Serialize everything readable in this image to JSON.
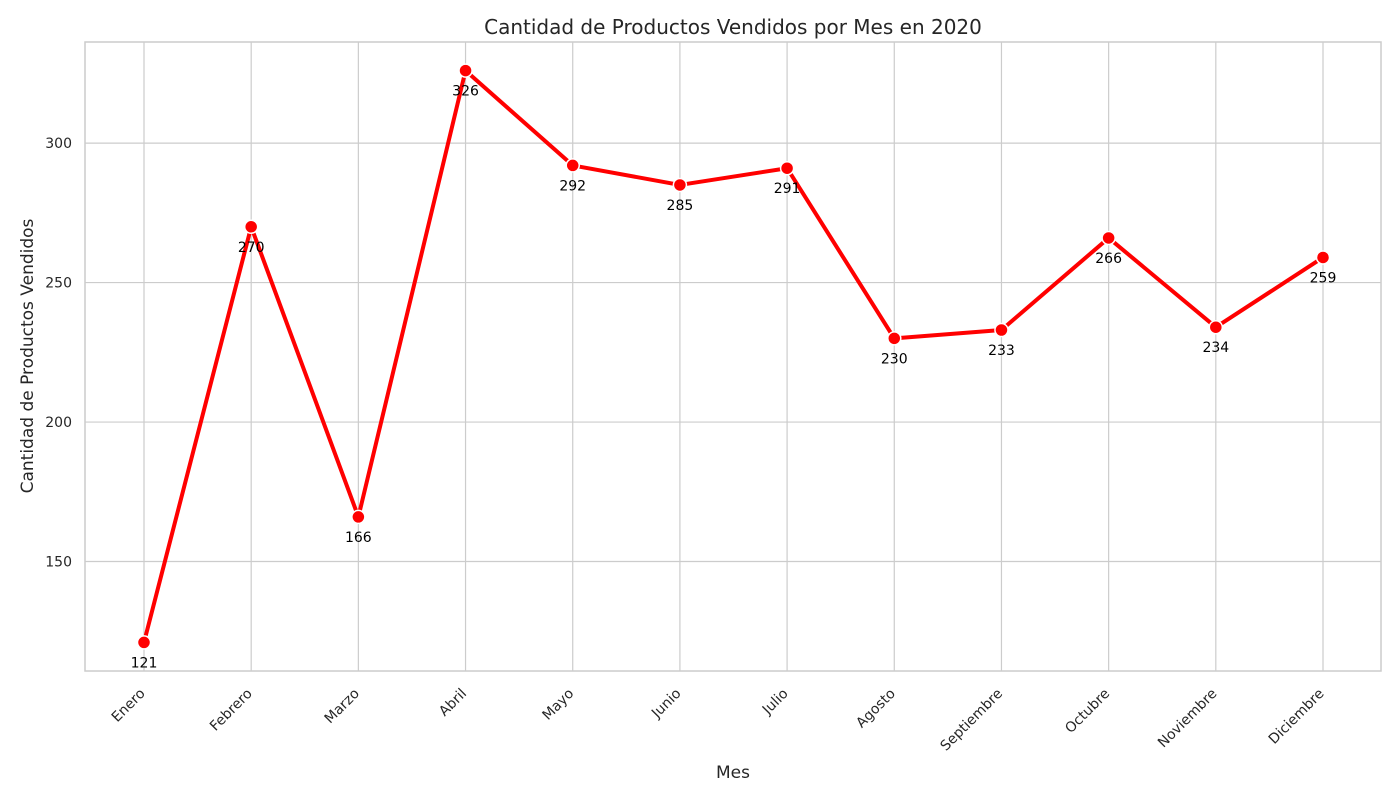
{
  "chart_data": {
    "type": "line",
    "title": "Cantidad de Productos Vendidos por Mes en 2020",
    "xlabel": "Mes",
    "ylabel": "Cantidad de Productos Vendidos",
    "categories": [
      "Enero",
      "Febrero",
      "Marzo",
      "Abril",
      "Mayo",
      "Junio",
      "Julio",
      "Agosto",
      "Septiembre",
      "Octubre",
      "Noviembre",
      "Diciembre"
    ],
    "series": [
      {
        "values": [
          121,
          270,
          166,
          326,
          292,
          285,
          291,
          230,
          233,
          266,
          234,
          259
        ]
      }
    ],
    "ylim": [
      110.75,
      336.25
    ],
    "yticks": [
      150,
      200,
      250,
      300
    ],
    "grid": true,
    "legend": "none",
    "colors": {
      "line": "#ff0000",
      "marker": "#ff0000",
      "marker_edge": "#ffffff",
      "grid": "#cccccc",
      "frame": "#cccccc"
    }
  }
}
